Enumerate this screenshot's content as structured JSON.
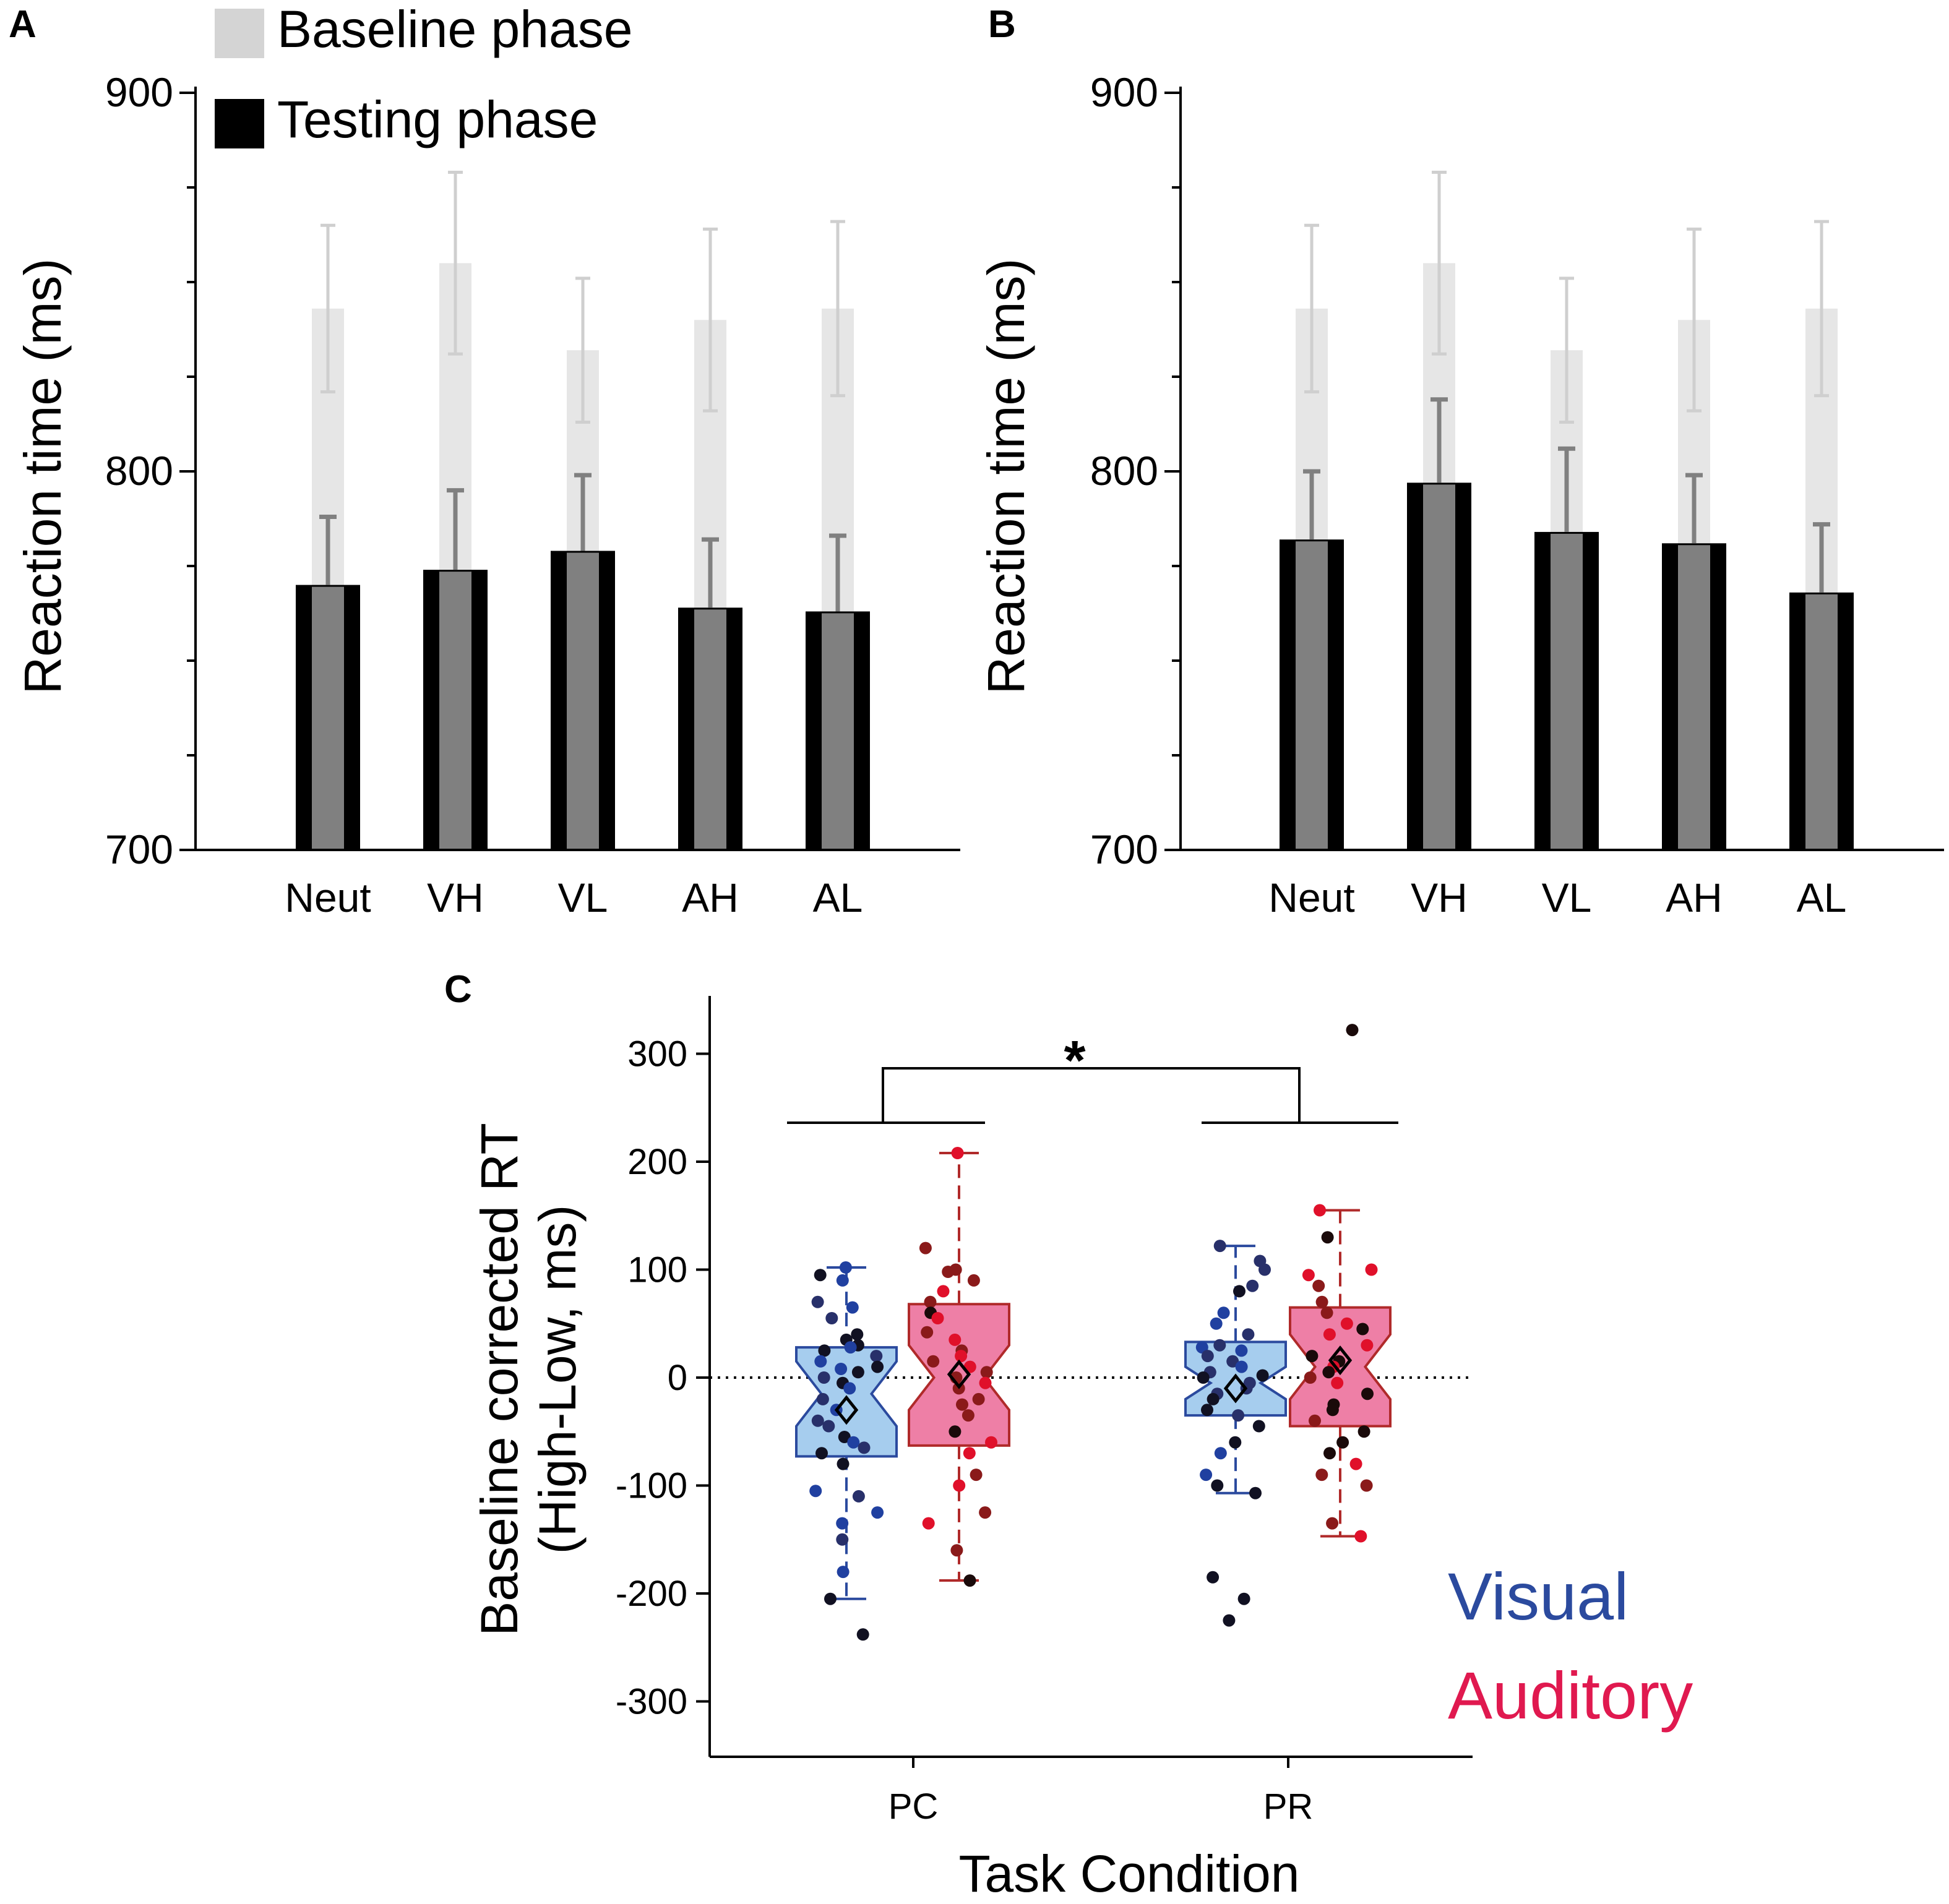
{
  "chart_data": [
    {
      "panel": "A",
      "type": "bar",
      "ylabel": "Reaction time (ms)",
      "ylim": [
        700,
        900
      ],
      "yticks": [
        "700",
        "800",
        "900"
      ],
      "categories": [
        "Neut",
        "VH",
        "VL",
        "AH",
        "AL"
      ],
      "legend": [
        "Baseline phase",
        "Testing phase"
      ],
      "series": [
        {
          "name": "Baseline phase",
          "color": "#e6e6e6",
          "values": [
            843,
            855,
            832,
            840,
            843
          ],
          "errors": [
            22,
            24,
            19,
            24,
            23
          ]
        },
        {
          "name": "Testing phase",
          "color": "#000000",
          "values": [
            770,
            774,
            779,
            764,
            763
          ],
          "errors": [
            18,
            21,
            20,
            18,
            20
          ]
        }
      ]
    },
    {
      "panel": "B",
      "type": "bar",
      "ylabel": "Reaction time (ms)",
      "ylim": [
        700,
        900
      ],
      "yticks": [
        "700",
        "800",
        "900"
      ],
      "categories": [
        "Neut",
        "VH",
        "VL",
        "AH",
        "AL"
      ],
      "series": [
        {
          "name": "Baseline phase",
          "color": "#e6e6e6",
          "values": [
            843,
            855,
            832,
            840,
            843
          ],
          "errors": [
            22,
            24,
            19,
            24,
            23
          ]
        },
        {
          "name": "Testing phase",
          "color": "#000000",
          "values": [
            782,
            797,
            784,
            781,
            768
          ],
          "errors": [
            18,
            22,
            22,
            18,
            18
          ]
        }
      ]
    },
    {
      "panel": "C",
      "type": "box",
      "xlabel": "Task Condition",
      "ylabel": [
        "Baseline corrected RT",
        "(High-Low, ms)"
      ],
      "ylim": [
        -350,
        350
      ],
      "yticks": [
        "-300",
        "-200",
        "-100",
        "0",
        "100",
        "200",
        "300"
      ],
      "categories": [
        "PC",
        "PR"
      ],
      "significance": "*",
      "legend": [
        "Visual",
        "Auditory"
      ],
      "series": [
        {
          "name": "Visual",
          "color": "#2b4a9e",
          "fill": "#a6cdee",
          "boxes": [
            {
              "category": "PC",
              "q1": -73,
              "median": -15,
              "q3": 28,
              "notch_low": -45,
              "notch_high": 15,
              "whisker_low": -205,
              "whisker_high": 102,
              "mean": -30,
              "points": [
                102,
                95,
                90,
                70,
                65,
                55,
                40,
                35,
                30,
                28,
                25,
                20,
                15,
                10,
                8,
                5,
                0,
                -5,
                -10,
                -20,
                -30,
                -40,
                -45,
                -55,
                -60,
                -65,
                -70,
                -80,
                -105,
                -110,
                -125,
                -135,
                -150,
                -180,
                -205,
                -238
              ]
            },
            {
              "category": "PR",
              "q1": -35,
              "median": -5,
              "q3": 33,
              "notch_low": -20,
              "notch_high": 10,
              "whisker_low": -107,
              "whisker_high": 122,
              "mean": -10,
              "points": [
                122,
                108,
                100,
                85,
                80,
                60,
                50,
                40,
                30,
                28,
                25,
                20,
                15,
                10,
                5,
                2,
                0,
                -5,
                -10,
                -15,
                -20,
                -30,
                -35,
                -45,
                -60,
                -70,
                -90,
                -100,
                -107,
                -185,
                -205,
                -225
              ]
            }
          ]
        },
        {
          "name": "Auditory",
          "color": "#b02a2a",
          "fill": "#ee7fa6",
          "boxes": [
            {
              "category": "PC",
              "q1": -63,
              "median": 0,
              "q3": 68,
              "notch_low": -30,
              "notch_high": 30,
              "whisker_low": -188,
              "whisker_high": 208,
              "mean": 3,
              "points": [
                208,
                120,
                100,
                98,
                90,
                80,
                70,
                60,
                55,
                42,
                35,
                25,
                20,
                15,
                10,
                5,
                0,
                -5,
                -10,
                -20,
                -25,
                -35,
                -50,
                -60,
                -70,
                -90,
                -100,
                -125,
                -135,
                -160,
                -188
              ]
            },
            {
              "category": "PR",
              "q1": -45,
              "median": 10,
              "q3": 65,
              "notch_low": -20,
              "notch_high": 40,
              "whisker_low": -147,
              "whisker_high": 155,
              "mean": 16,
              "points": [
                322,
                155,
                130,
                100,
                95,
                85,
                70,
                60,
                50,
                45,
                40,
                30,
                20,
                15,
                10,
                5,
                0,
                -5,
                -15,
                -25,
                -30,
                -40,
                -50,
                -60,
                -70,
                -80,
                -90,
                -100,
                -135,
                -147
              ]
            }
          ]
        }
      ]
    }
  ]
}
